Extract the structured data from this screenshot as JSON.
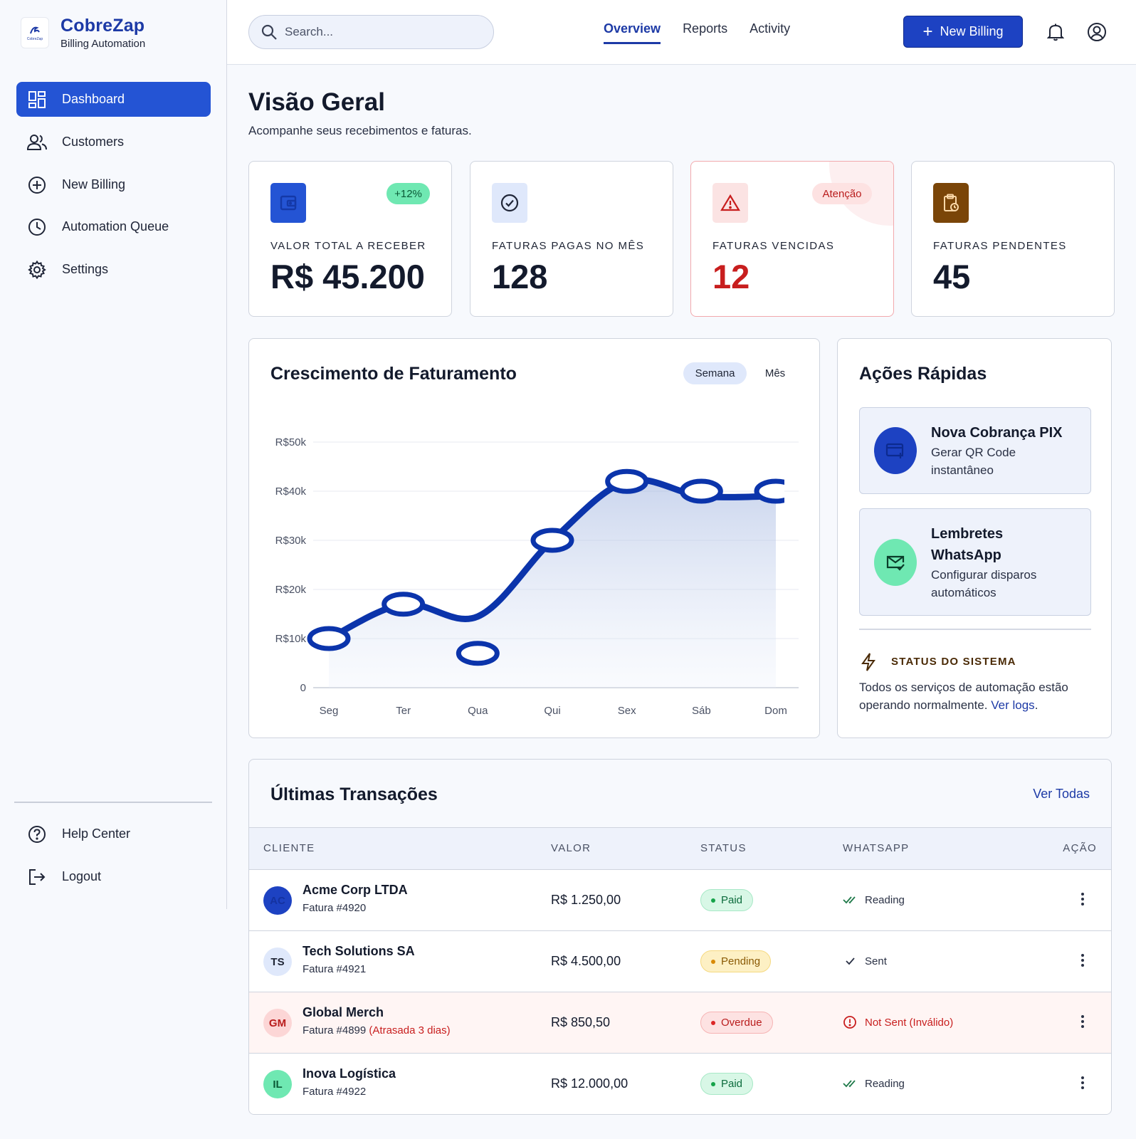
{
  "brand": {
    "title": "CobreZap",
    "subtitle": "Billing Automation",
    "logo_mini": "CobreZap"
  },
  "sidebar": {
    "items": [
      {
        "label": "Dashboard",
        "icon": "dashboard-icon",
        "active": true
      },
      {
        "label": "Customers",
        "icon": "users-icon"
      },
      {
        "label": "New Billing",
        "icon": "plus-circle-icon"
      },
      {
        "label": "Automation Queue",
        "icon": "clock-icon"
      },
      {
        "label": "Settings",
        "icon": "gear-icon"
      }
    ],
    "footer": [
      {
        "label": "Help Center",
        "icon": "help-icon"
      },
      {
        "label": "Logout",
        "icon": "logout-icon"
      }
    ]
  },
  "topbar": {
    "search_placeholder": "Search...",
    "tabs": [
      "Overview",
      "Reports",
      "Activity"
    ],
    "active_tab": "Overview",
    "new_billing_label": "New Billing"
  },
  "page": {
    "title": "Visão Geral",
    "subtitle": "Acompanhe seus recebimentos e faturas."
  },
  "stats": [
    {
      "label": "VALOR TOTAL A RECEBER",
      "value": "R$ 45.200",
      "badge": "+12%",
      "icon": "wallet-icon",
      "color": "#2454d4"
    },
    {
      "label": "FATURAS PAGAS NO MÊS",
      "value": "128",
      "icon": "check-circle-icon",
      "color": "#dfe8fb"
    },
    {
      "label": "FATURAS VENCIDAS",
      "value": "12",
      "badge": "Atenção",
      "icon": "warning-icon",
      "color": "#fbe3e3"
    },
    {
      "label": "FATURAS PENDENTES",
      "value": "45",
      "icon": "clipboard-clock-icon",
      "color": "#7a4508"
    }
  ],
  "chart": {
    "title": "Crescimento de Faturamento",
    "toggle": [
      "Semana",
      "Mês"
    ],
    "active_toggle": "Semana"
  },
  "chart_data": {
    "type": "area",
    "categories": [
      "Seg",
      "Ter",
      "Qua",
      "Qui",
      "Sex",
      "Sáb",
      "Dom"
    ],
    "values": [
      10000,
      17000,
      7000,
      30000,
      42000,
      40000,
      40000
    ],
    "yticks": [
      "0",
      "R$10k",
      "R$20k",
      "R$30k",
      "R$40k",
      "R$50k"
    ],
    "ylim": [
      0,
      50000
    ],
    "grid": true,
    "line_color": "#0b34ab"
  },
  "quick_actions": {
    "title": "Ações Rápidas",
    "items": [
      {
        "title": "Nova Cobrança PIX",
        "desc_lines": [
          "Gerar QR Code",
          "instantâneo"
        ],
        "icon": "card-plus-icon"
      },
      {
        "title_lines": [
          "Lembretes",
          "WhatsApp"
        ],
        "desc_lines": [
          "Configurar disparos",
          "automáticos"
        ],
        "icon": "mail-check-icon"
      }
    ],
    "status_label": "STATUS DO SISTEMA",
    "status_text": "Todos os serviços de automação estão operando normalmente.",
    "status_link": "Ver logs"
  },
  "transactions": {
    "title": "Últimas Transações",
    "view_all": "Ver Todas",
    "columns": [
      "CLIENTE",
      "VALOR",
      "STATUS",
      "WHATSAPP",
      "AÇÃO"
    ],
    "rows": [
      {
        "initials": "AC",
        "name": "Acme Corp LTDA",
        "invoice": "Fatura #4920",
        "late": "",
        "value": "R$ 1.250,00",
        "status": "Paid",
        "whatsapp": "Reading",
        "wa_icon": "double-check-icon"
      },
      {
        "initials": "TS",
        "name": "Tech Solutions SA",
        "invoice": "Fatura #4921",
        "late": "",
        "value": "R$ 4.500,00",
        "status": "Pending",
        "whatsapp": "Sent",
        "wa_icon": "check-icon"
      },
      {
        "initials": "GM",
        "name": "Global Merch",
        "invoice": "Fatura #4899",
        "late": "(Atrasada 3 dias)",
        "value": "R$ 850,50",
        "status": "Overdue",
        "whatsapp": "Not Sent (Inválido)",
        "wa_icon": "alert-circle-icon"
      },
      {
        "initials": "IL",
        "name": "Inova Logística",
        "invoice": "Fatura #4922",
        "late": "",
        "value": "R$ 12.000,00",
        "status": "Paid",
        "whatsapp": "Reading",
        "wa_icon": "double-check-icon"
      }
    ]
  }
}
